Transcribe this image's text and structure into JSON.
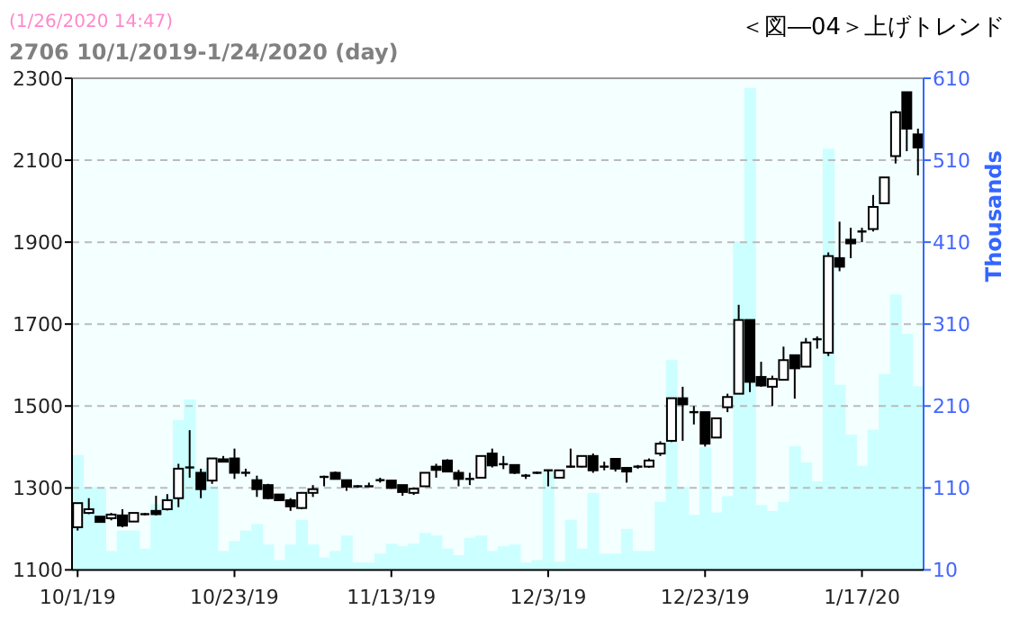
{
  "chart_data": {
    "type": "candlestick",
    "title": "＜図―04＞上げトレンド",
    "subtitle": "2706 10/1/2019-1/24/2020 (day)",
    "annotations": [
      "(1/26/2020 14:47)"
    ],
    "y2label": "Thousands",
    "categories": [
      "10/1/19",
      null,
      null,
      null,
      null,
      null,
      null,
      null,
      null,
      null,
      null,
      null,
      null,
      null,
      "10/23/19",
      null,
      null,
      null,
      null,
      null,
      null,
      null,
      null,
      null,
      null,
      null,
      null,
      null,
      "11/13/19",
      null,
      null,
      null,
      null,
      null,
      null,
      null,
      null,
      null,
      null,
      null,
      null,
      null,
      "12/3/19",
      null,
      null,
      null,
      null,
      null,
      null,
      null,
      null,
      null,
      null,
      null,
      null,
      null,
      "12/23/19",
      null,
      null,
      null,
      null,
      null,
      null,
      null,
      null,
      null,
      null,
      null,
      null,
      null,
      "1/17/20",
      null,
      null,
      null,
      null,
      null
    ],
    "ohlc": [
      [
        1204,
        1263,
        1196,
        1263
      ],
      [
        1239,
        1275,
        1236,
        1248
      ],
      [
        1230,
        1230,
        1217,
        1217
      ],
      [
        1226,
        1239,
        1221,
        1235
      ],
      [
        1233,
        1248,
        1204,
        1208
      ],
      [
        1218,
        1239,
        1218,
        1239
      ],
      [
        1236,
        1239,
        1233,
        1236
      ],
      [
        1244,
        1281,
        1233,
        1236
      ],
      [
        1248,
        1285,
        1245,
        1270
      ],
      [
        1275,
        1359,
        1253,
        1347
      ],
      [
        1350,
        1441,
        1325,
        1347
      ],
      [
        1337,
        1347,
        1275,
        1297
      ],
      [
        1318,
        1372,
        1310,
        1372
      ],
      [
        1370,
        1378,
        1364,
        1364
      ],
      [
        1372,
        1396,
        1322,
        1337
      ],
      [
        1337,
        1347,
        1328,
        1337
      ],
      [
        1319,
        1330,
        1278,
        1297
      ],
      [
        1307,
        1310,
        1273,
        1275
      ],
      [
        1284,
        1284,
        1270,
        1270
      ],
      [
        1270,
        1275,
        1244,
        1255
      ],
      [
        1251,
        1290,
        1248,
        1288
      ],
      [
        1288,
        1307,
        1278,
        1297
      ],
      [
        1327,
        1330,
        1304,
        1327
      ],
      [
        1337,
        1340,
        1322,
        1322
      ],
      [
        1319,
        1319,
        1293,
        1303
      ],
      [
        1304,
        1307,
        1300,
        1304
      ],
      [
        1304,
        1313,
        1303,
        1304
      ],
      [
        1318,
        1325,
        1313,
        1319
      ],
      [
        1318,
        1319,
        1298,
        1300
      ],
      [
        1307,
        1307,
        1281,
        1290
      ],
      [
        1288,
        1301,
        1283,
        1298
      ],
      [
        1304,
        1337,
        1304,
        1337
      ],
      [
        1352,
        1359,
        1325,
        1344
      ],
      [
        1367,
        1370,
        1340,
        1340
      ],
      [
        1337,
        1344,
        1304,
        1322
      ],
      [
        1322,
        1337,
        1307,
        1322
      ],
      [
        1325,
        1378,
        1325,
        1378
      ],
      [
        1384,
        1396,
        1350,
        1355
      ],
      [
        1358,
        1378,
        1346,
        1358
      ],
      [
        1356,
        1356,
        1334,
        1337
      ],
      [
        1330,
        1334,
        1322,
        1330
      ],
      [
        1337,
        1340,
        1334,
        1337
      ],
      [
        1343,
        1343,
        1304,
        1343
      ],
      [
        1325,
        1343,
        1325,
        1343
      ],
      [
        1352,
        1396,
        1350,
        1352
      ],
      [
        1352,
        1378,
        1350,
        1378
      ],
      [
        1378,
        1384,
        1337,
        1343
      ],
      [
        1352,
        1364,
        1343,
        1350
      ],
      [
        1371,
        1371,
        1340,
        1347
      ],
      [
        1349,
        1349,
        1313,
        1340
      ],
      [
        1352,
        1356,
        1347,
        1352
      ],
      [
        1352,
        1372,
        1349,
        1367
      ],
      [
        1384,
        1414,
        1378,
        1408
      ],
      [
        1415,
        1519,
        1412,
        1519
      ],
      [
        1519,
        1547,
        1415,
        1504
      ],
      [
        1485,
        1500,
        1455,
        1485
      ],
      [
        1485,
        1485,
        1401,
        1408
      ],
      [
        1423,
        1470,
        1423,
        1470
      ],
      [
        1497,
        1530,
        1485,
        1522
      ],
      [
        1530,
        1747,
        1530,
        1710
      ],
      [
        1710,
        1710,
        1534,
        1559
      ],
      [
        1571,
        1608,
        1547,
        1550
      ],
      [
        1547,
        1574,
        1500,
        1566
      ],
      [
        1564,
        1645,
        1564,
        1612
      ],
      [
        1624,
        1624,
        1518,
        1592
      ],
      [
        1596,
        1666,
        1596,
        1655
      ],
      [
        1663,
        1670,
        1640,
        1663
      ],
      [
        1630,
        1875,
        1622,
        1866
      ],
      [
        1861,
        1950,
        1829,
        1840
      ],
      [
        1906,
        1935,
        1861,
        1897
      ],
      [
        1926,
        1935,
        1900,
        1926
      ],
      [
        1932,
        2015,
        1926,
        1986
      ],
      [
        1995,
        2058,
        1995,
        2058
      ],
      [
        2110,
        2221,
        2092,
        2217
      ],
      [
        2266,
        2266,
        2122,
        2177
      ],
      [
        2163,
        2177,
        2063,
        2131
      ]
    ],
    "series": [
      {
        "type": "bar",
        "axis": "y2",
        "color": "#ccffff",
        "values": [
          150,
          111,
          111,
          33,
          58,
          58,
          36,
          90,
          98,
          193,
          218,
          133,
          112,
          33,
          45,
          58,
          66,
          41,
          22,
          41,
          71,
          41,
          25,
          33,
          52,
          19,
          19,
          30,
          42,
          39,
          42,
          55,
          52,
          36,
          28,
          49,
          52,
          33,
          39,
          41,
          19,
          22,
          131,
          20,
          71,
          36,
          104,
          30,
          30,
          60,
          33,
          33,
          93,
          266,
          111,
          77,
          160,
          80,
          100,
          411,
          598,
          89,
          82,
          93,
          161,
          141,
          118,
          524,
          236,
          175,
          137,
          181,
          249,
          346,
          298,
          234
        ]
      }
    ],
    "ylim": [
      1100,
      2300
    ],
    "yticks": [
      1100,
      1300,
      1500,
      1700,
      1900,
      2100,
      2300
    ],
    "y2lim": [
      10,
      610
    ],
    "y2ticks": [
      10,
      110,
      210,
      310,
      410,
      510,
      610
    ],
    "grid": "y"
  }
}
